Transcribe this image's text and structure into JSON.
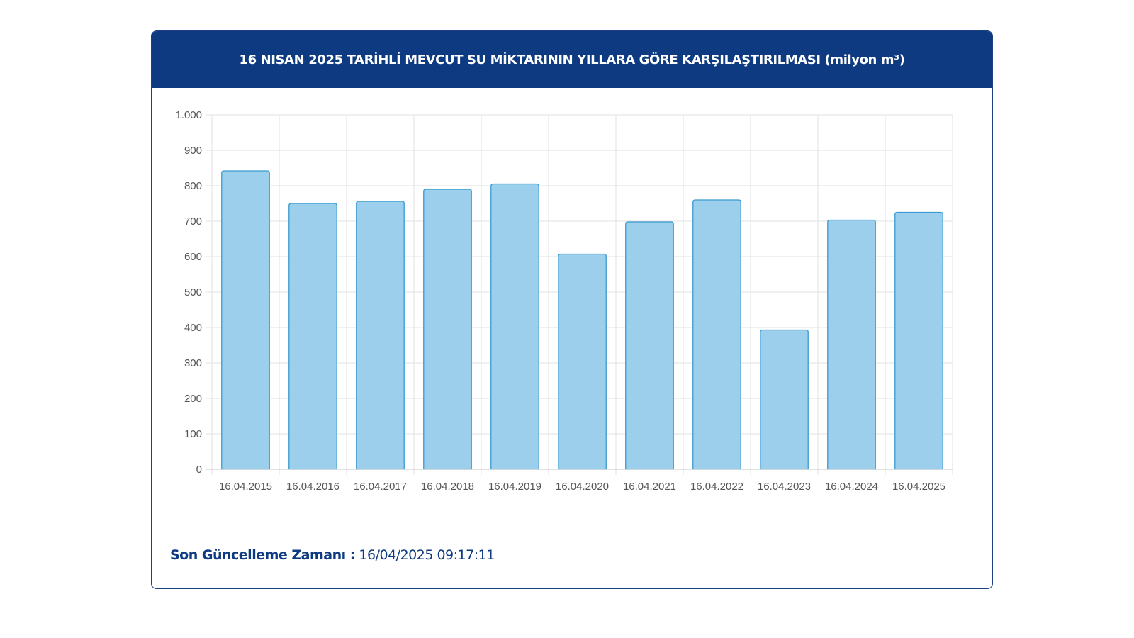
{
  "header": {
    "title": "16 NISAN 2025 TARİHLİ MEVCUT SU MİKTARININ YILLARA GÖRE KARŞILAŞTIRILMASI (milyon m³)"
  },
  "footer": {
    "label": "Son Güncelleme Zamanı :",
    "value": "16/04/2025 09:17:11"
  },
  "colors": {
    "header_bg": "#0d3a80",
    "bar_fill": "#9bcfec",
    "bar_stroke": "#3a9ad0",
    "grid": "#e2e2e2",
    "axis_text": "#555555"
  },
  "chart_data": {
    "type": "bar",
    "categories": [
      "16.04.2015",
      "16.04.2016",
      "16.04.2017",
      "16.04.2018",
      "16.04.2019",
      "16.04.2020",
      "16.04.2021",
      "16.04.2022",
      "16.04.2023",
      "16.04.2024",
      "16.04.2025"
    ],
    "values": [
      842,
      750,
      756,
      790,
      805,
      607,
      698,
      760,
      393,
      703,
      725
    ],
    "ylim": [
      0,
      1000
    ],
    "yticks": [
      0,
      100,
      200,
      300,
      400,
      500,
      600,
      700,
      800,
      900,
      1000
    ],
    "ytick_labels": [
      "0",
      "100",
      "200",
      "300",
      "400",
      "500",
      "600",
      "700",
      "800",
      "900",
      "1.000"
    ],
    "grid": true,
    "legend": "none"
  }
}
